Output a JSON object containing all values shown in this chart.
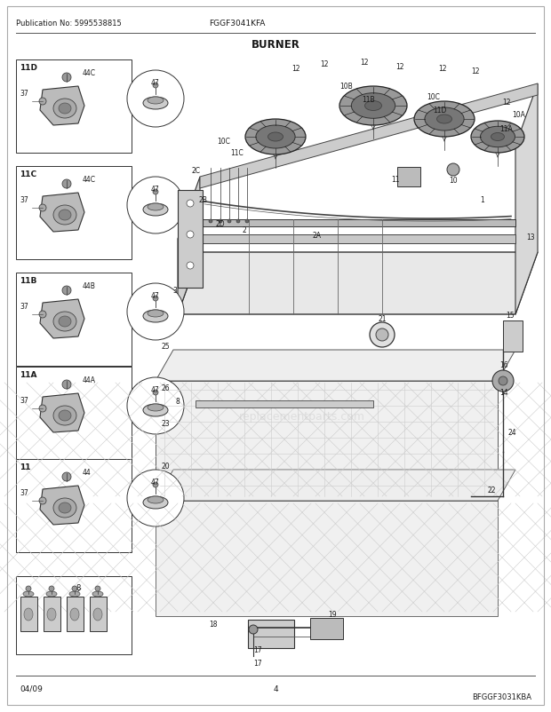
{
  "pub_no": "Publication No: 5995538815",
  "model": "FGGF3041KFA",
  "section": "BURNER",
  "page": "4",
  "date": "04/09",
  "diagram_code": "BFGGF3031KBA",
  "bg_color": "#ffffff",
  "border_color": "#000000",
  "text_color": "#1a1a1a",
  "fig_width": 6.2,
  "fig_height": 8.03,
  "dpi": 100,
  "watermark": "replacementparts.com"
}
